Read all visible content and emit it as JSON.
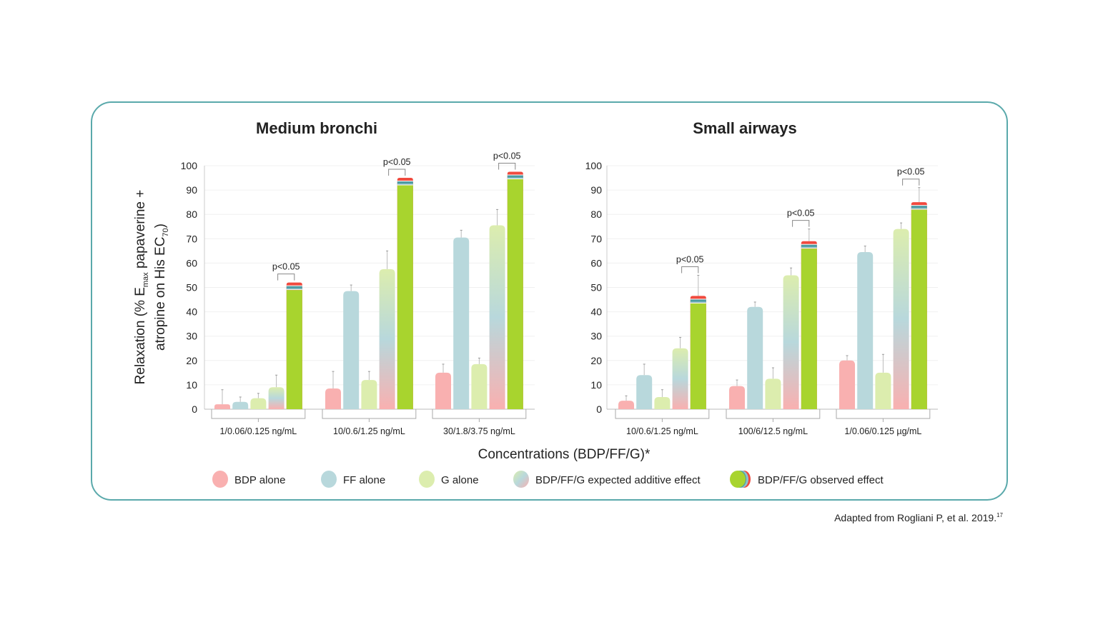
{
  "colors": {
    "bdp": "#f9b0b0",
    "ff": "#b8d8dc",
    "g": "#dcedae",
    "observed": "#a8d42e",
    "stripe_red": "#f04a3e",
    "stripe_teal": "#4b9aa2",
    "stripe_blue": "#8cc3cc",
    "frame": "#5aa9ab"
  },
  "y_axis_title": {
    "line1_a": "Relaxation (% E",
    "line1_sub": "max",
    "line1_b": " papaverine +",
    "line2_a": "atropine on His EC",
    "line2_sub": "70",
    "line2_b": ")"
  },
  "x_axis_title": "Concentrations (BDP/FF/G)*",
  "legend": [
    {
      "key": "bdp",
      "label": "BDP alone"
    },
    {
      "key": "ff",
      "label": "FF alone"
    },
    {
      "key": "g",
      "label": "G alone"
    },
    {
      "key": "expected",
      "label": "BDP/FF/G expected additive effect"
    },
    {
      "key": "observed",
      "label": "BDP/FF/G observed effect"
    }
  ],
  "source_note": "Adapted from Rogliani P, et al. 2019.",
  "source_sup": "17",
  "chart_data": [
    {
      "type": "bar",
      "title": "Medium bronchi",
      "ylabel": "Relaxation (% Emax papaverine + atropine on His EC70)",
      "xlabel": "Concentrations (BDP/FF/G)*",
      "ylim": [
        0,
        100
      ],
      "yticks": [
        "0",
        "10",
        "20",
        "30",
        "40",
        "50",
        "60",
        "70",
        "80",
        "90",
        "100"
      ],
      "grid": true,
      "categories": [
        "1/0.06/0.125 ng/mL",
        "10/0.6/1.25 ng/mL",
        "30/1.8/3.75 ng/mL"
      ],
      "series": [
        {
          "name": "BDP alone",
          "key": "bdp",
          "values": [
            2,
            8.5,
            15
          ],
          "error_top": [
            8,
            15.5,
            18.5
          ]
        },
        {
          "name": "FF alone",
          "key": "ff",
          "values": [
            3,
            48.5,
            70.5
          ],
          "error_top": [
            5,
            51,
            73.5
          ]
        },
        {
          "name": "G alone",
          "key": "g",
          "values": [
            4.5,
            12,
            18.5
          ],
          "error_top": [
            6.5,
            15.5,
            21
          ]
        },
        {
          "name": "BDP/FF/G expected additive effect",
          "key": "expected",
          "values": [
            9,
            57.5,
            75.5
          ],
          "error_top": [
            14,
            65,
            82
          ]
        },
        {
          "name": "BDP/FF/G observed effect",
          "key": "observed",
          "values": [
            52,
            95,
            97.5
          ],
          "error_top": [
            null,
            null,
            null
          ]
        }
      ],
      "annotations": [
        "p<0.05",
        "p<0.05",
        "p<0.05"
      ]
    },
    {
      "type": "bar",
      "title": "Small airways",
      "ylabel": "Relaxation (% Emax papaverine + atropine on His EC70)",
      "xlabel": "Concentrations (BDP/FF/G)*",
      "ylim": [
        0,
        100
      ],
      "yticks": [
        "0",
        "10",
        "20",
        "30",
        "40",
        "50",
        "60",
        "70",
        "80",
        "90",
        "100"
      ],
      "grid": true,
      "categories": [
        "10/0.6/1.25 ng/mL",
        "100/6/12.5 ng/mL",
        "1/0.06/0.125 µg/mL"
      ],
      "series": [
        {
          "name": "BDP alone",
          "key": "bdp",
          "values": [
            3.5,
            9.5,
            20
          ],
          "error_top": [
            5.5,
            12,
            22
          ]
        },
        {
          "name": "FF alone",
          "key": "ff",
          "values": [
            14,
            42,
            64.5
          ],
          "error_top": [
            18.5,
            44,
            67
          ]
        },
        {
          "name": "G alone",
          "key": "g",
          "values": [
            5,
            12.5,
            15
          ],
          "error_top": [
            8,
            17,
            22.5
          ]
        },
        {
          "name": "BDP/FF/G expected additive effect",
          "key": "expected",
          "values": [
            25,
            55,
            74
          ],
          "error_top": [
            29.5,
            58,
            76.5
          ]
        },
        {
          "name": "BDP/FF/G observed effect",
          "key": "observed",
          "values": [
            46.5,
            69,
            85
          ],
          "error_top": [
            55,
            74,
            91
          ]
        }
      ],
      "annotations": [
        "p<0.05",
        "p<0.05",
        "p<0.05"
      ]
    }
  ]
}
